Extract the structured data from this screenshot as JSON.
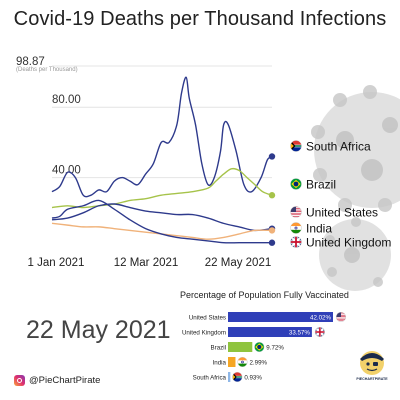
{
  "title": "Covid-19 Deaths per Thousand Infections",
  "date_display": "22 May 2021",
  "brand": "@PieChartPirate",
  "brand_logo_text": "PIECHARTPIRATE",
  "colors": {
    "line_blue": "#2e3a8c",
    "line_green": "#a6c34a",
    "line_orange": "#f0b27a",
    "bar_blue": "#2f3fb8",
    "bar_green": "#8fc43e",
    "bar_orange": "#f5a623",
    "bar_lightblue": "#90b8e8"
  },
  "chart_data": [
    {
      "type": "line",
      "title": "Covid-19 Deaths per Thousand Infections",
      "ylabel": "(Deaths per Thousand)",
      "y_max_label": "98.87",
      "x_ticks": [
        "1 Jan 2021",
        "12 Mar 2021",
        "22 May 2021"
      ],
      "x_tick_values": [
        0,
        70,
        141
      ],
      "y_ticks": [
        40.0,
        80.0
      ],
      "y_tick_labels": [
        "40.00",
        "80.00"
      ],
      "xlim": [
        0,
        141
      ],
      "ylim": [
        0,
        98.87
      ],
      "grid": true,
      "legend": "right",
      "series": [
        {
          "name": "South Africa",
          "color": "#2e3a8c",
          "flag": "ZA",
          "x": [
            0,
            5,
            10,
            15,
            20,
            25,
            30,
            35,
            40,
            45,
            50,
            55,
            60,
            65,
            70,
            75,
            80,
            83,
            86,
            88,
            92,
            96,
            100,
            104,
            108,
            110,
            113,
            118,
            123,
            128,
            134,
            138,
            141
          ],
          "values": [
            32,
            35,
            43,
            40,
            30,
            30,
            33,
            32,
            38,
            40,
            38,
            36,
            42,
            48,
            60,
            60,
            70,
            88,
            97,
            85,
            70,
            48,
            36,
            40,
            55,
            70,
            70,
            55,
            36,
            32,
            40,
            50,
            52
          ]
        },
        {
          "name": "Brazil",
          "color": "#a6c34a",
          "flag": "BR",
          "x": [
            0,
            10,
            20,
            30,
            40,
            50,
            60,
            70,
            80,
            90,
            100,
            105,
            110,
            115,
            120,
            125,
            130,
            135,
            141
          ],
          "values": [
            23,
            24,
            23,
            24,
            25,
            27,
            28,
            30,
            31,
            32,
            34,
            38,
            42,
            45,
            44,
            40,
            36,
            32,
            30
          ]
        },
        {
          "name": "United States",
          "color": "#2e3a8c",
          "flag": "US",
          "x": [
            0,
            10,
            20,
            30,
            40,
            50,
            60,
            70,
            80,
            90,
            100,
            110,
            120,
            130,
            141
          ],
          "values": [
            16,
            17,
            20,
            24,
            25,
            23,
            21,
            20,
            19,
            19,
            17,
            14,
            12,
            10,
            11
          ]
        },
        {
          "name": "India",
          "color": "#f0b27a",
          "flag": "IN",
          "x": [
            0,
            10,
            20,
            30,
            40,
            50,
            60,
            70,
            80,
            90,
            100,
            110,
            120,
            130,
            141
          ],
          "values": [
            14,
            13,
            12,
            12,
            11,
            10,
            9,
            8,
            7,
            6,
            5,
            6,
            8,
            10,
            10
          ]
        },
        {
          "name": "United Kingdom",
          "color": "#2e3a8c",
          "flag": "GB",
          "x": [
            0,
            5,
            10,
            20,
            30,
            40,
            50,
            60,
            70,
            80,
            90,
            100,
            110,
            120,
            130,
            141
          ],
          "values": [
            17,
            18,
            22,
            24,
            27,
            22,
            16,
            11,
            8,
            6,
            5,
            4,
            3,
            3,
            3,
            3
          ]
        }
      ]
    },
    {
      "type": "bar",
      "orientation": "horizontal",
      "title": "Percentage of Population Fully Vaccinated",
      "categories": [
        "United States",
        "United Kingdom",
        "Brazil",
        "India",
        "South Africa"
      ],
      "values": [
        42.02,
        33.57,
        9.72,
        2.99,
        0.93
      ],
      "value_labels": [
        "42.02%",
        "33.57%",
        "9.72%",
        "2.99%",
        "0.93%"
      ],
      "flags": [
        "US",
        "GB",
        "BR",
        "IN",
        "ZA"
      ],
      "colors": [
        "#2f3fb8",
        "#2f3fb8",
        "#8fc43e",
        "#f5a623",
        "#90b8e8"
      ],
      "xlim": [
        0,
        42.02
      ]
    }
  ]
}
